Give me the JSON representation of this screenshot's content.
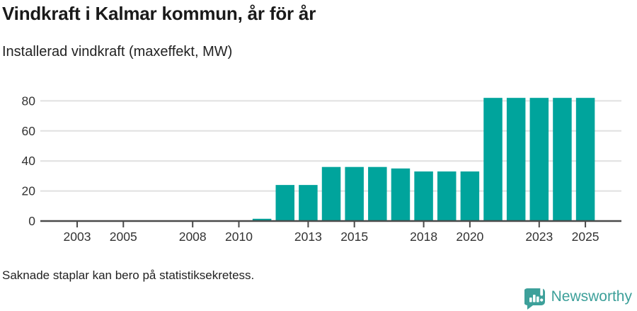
{
  "header": {
    "title": "Vindkraft i Kalmar kommun, år för år",
    "subtitle": "Installerad vindkraft (maxeffekt, MW)"
  },
  "chart_data": {
    "type": "bar",
    "title": "Vindkraft i Kalmar kommun, år för år",
    "subtitle": "Installerad vindkraft (maxeffekt, MW)",
    "xlabel": "",
    "ylabel": "Installerad vindkraft (maxeffekt, MW)",
    "categories": [
      2002,
      2003,
      2004,
      2005,
      2006,
      2007,
      2008,
      2009,
      2010,
      2011,
      2012,
      2013,
      2014,
      2015,
      2016,
      2017,
      2018,
      2019,
      2020,
      2021,
      2022,
      2023,
      2024,
      2025
    ],
    "values": [
      null,
      null,
      null,
      null,
      null,
      null,
      null,
      null,
      null,
      1.5,
      24,
      24,
      36,
      36,
      36,
      35,
      33,
      33,
      33,
      82,
      82,
      82,
      82,
      82
    ],
    "x_tick_labels": [
      2003,
      2005,
      2008,
      2010,
      2013,
      2015,
      2018,
      2020,
      2023,
      2025
    ],
    "y_ticks": [
      0,
      20,
      40,
      60,
      80
    ],
    "ylim": [
      0,
      85
    ],
    "grid": "horizontal-only",
    "legend": "none",
    "bar_color": "#00a49c",
    "grid_color": "#e0e0e0",
    "axis_color": "#4a4a4a",
    "tick_label_color": "#333333"
  },
  "footer": {
    "note": "Saknade staplar kan bero på statistiksekretess.",
    "brand_label": "Newsworthy",
    "brand_color": "#3da09a",
    "brand_icon": "newsworthy-bar-chart-speech-bubble-icon"
  }
}
